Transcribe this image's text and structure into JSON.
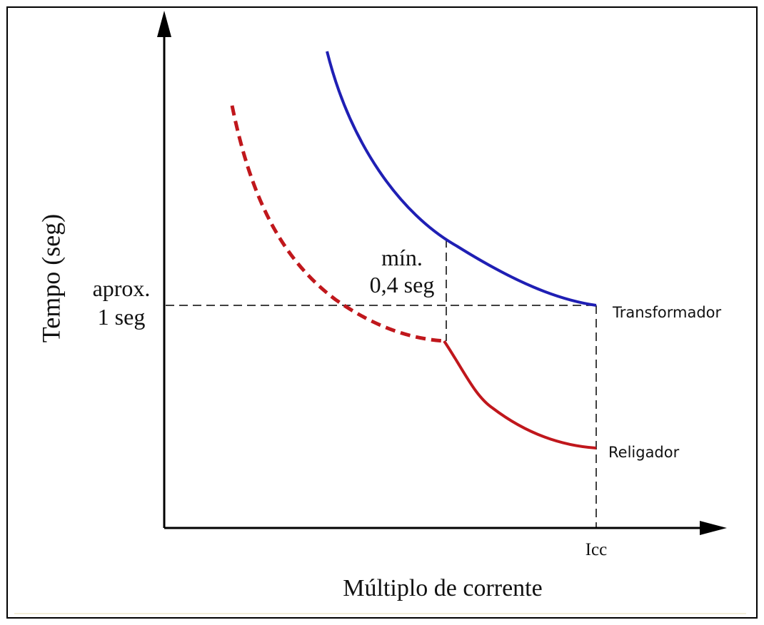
{
  "axes": {
    "y_label": "Tempo (seg)",
    "x_label": "Múltiplo de corrente",
    "x_marker": "Icc"
  },
  "annotations": {
    "aprox_line1": "aprox.",
    "aprox_line2": "1 seg",
    "min_line1": "mín.",
    "min_line2": "0,4 seg"
  },
  "curves": {
    "upper": "Transformador",
    "lower": "Religador"
  }
}
